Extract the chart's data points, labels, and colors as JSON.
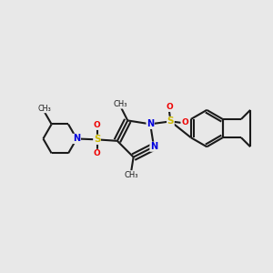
{
  "bg_color": "#e8e8e8",
  "bond_color": "#1a1a1a",
  "N_color": "#0000dd",
  "S_color": "#ccbb00",
  "O_color": "#ee0000",
  "lw": 1.5,
  "figsize": [
    3.0,
    3.0
  ],
  "dpi": 100,
  "xlim": [
    0.0,
    1.0
  ],
  "ylim": [
    0.25,
    0.85
  ]
}
